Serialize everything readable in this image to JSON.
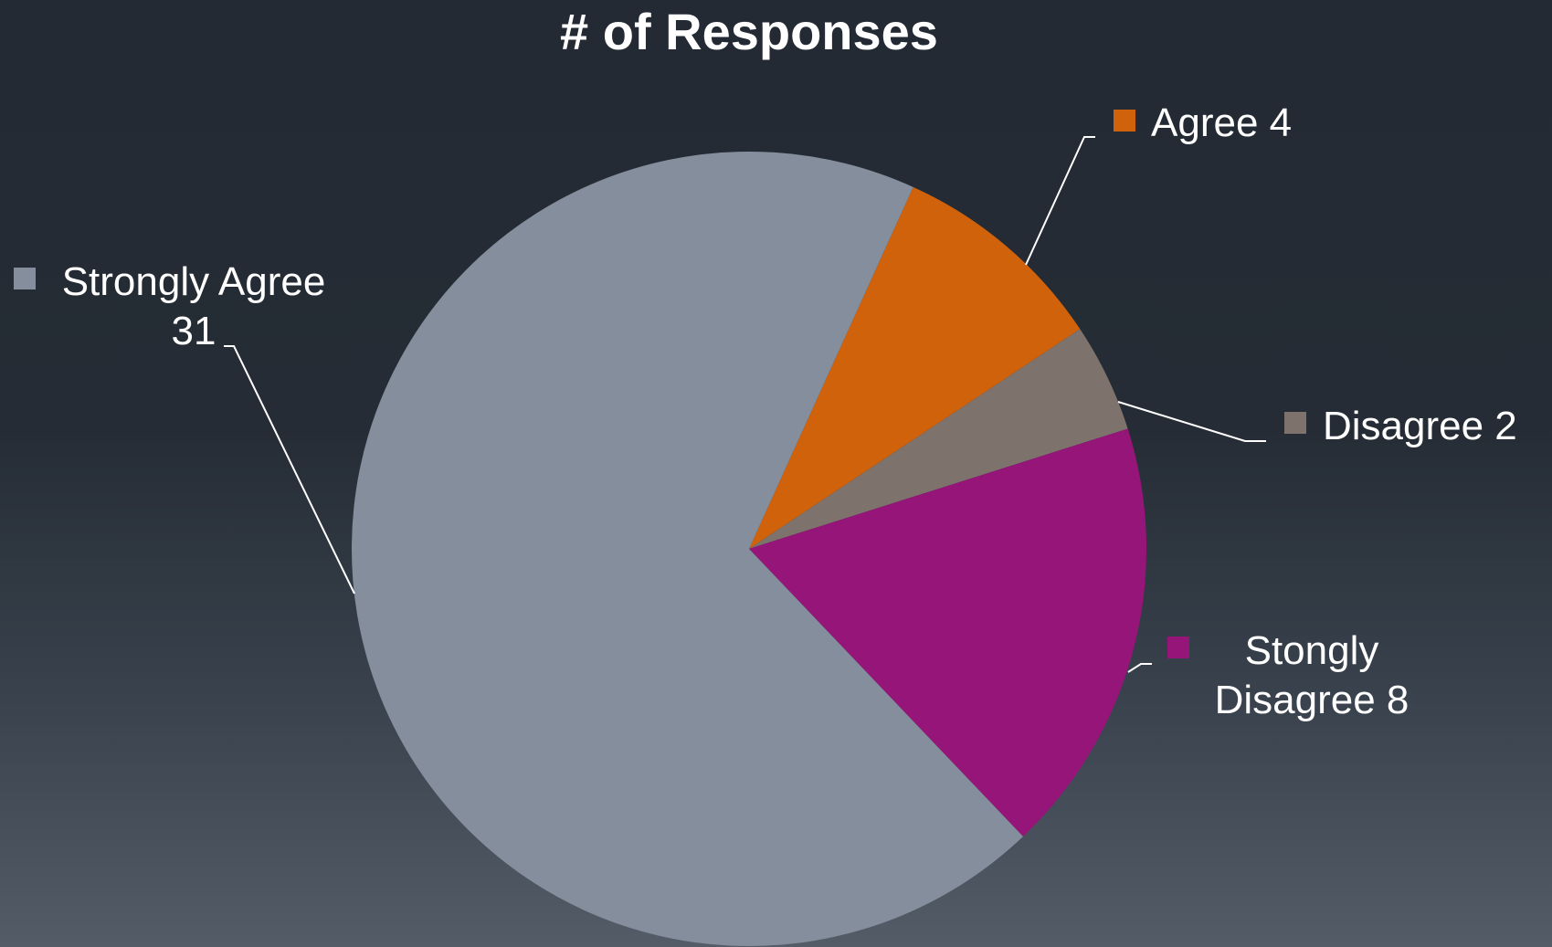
{
  "chart_data": {
    "type": "pie",
    "title": "# of Responses",
    "start_angle_deg": 24.4,
    "direction": "clockwise",
    "categories": [
      "Agree",
      "Disagree",
      "Stongly Disagree",
      "Strongly Agree"
    ],
    "values": [
      4,
      2,
      8,
      31
    ],
    "colors": [
      "#d0620c",
      "#7d726c",
      "#951579",
      "#848e9c"
    ],
    "labels": [
      {
        "category": "Agree",
        "lines": [
          "Agree 4"
        ]
      },
      {
        "category": "Disagree",
        "lines": [
          "Disagree 2"
        ]
      },
      {
        "category": "Stongly Disagree",
        "lines": [
          "Stongly",
          "Disagree 8"
        ]
      },
      {
        "category": "Strongly Agree",
        "lines": [
          "Strongly Agree",
          "31"
        ]
      }
    ],
    "legend_markers": true,
    "background": "dark gradient"
  }
}
